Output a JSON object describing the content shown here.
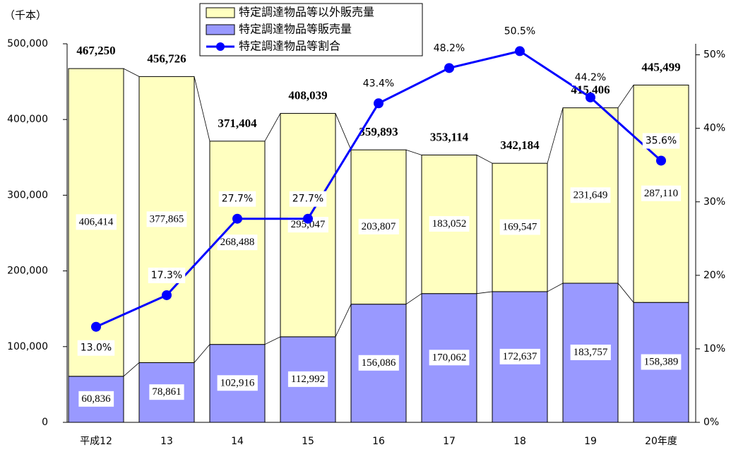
{
  "chart_data": {
    "type": "bar",
    "stacked": true,
    "y_label": "（千本）",
    "categories": [
      "平成12",
      "13",
      "14",
      "15",
      "16",
      "17",
      "18",
      "19",
      "20年度"
    ],
    "series": [
      {
        "name": "特定調達物品等販売量",
        "color": "#9999ff",
        "values": [
          60836,
          78861,
          102916,
          112992,
          156086,
          170062,
          172637,
          183757,
          158389
        ],
        "value_labels": [
          "60,836",
          "78,861",
          "102,916",
          "112,992",
          "156,086",
          "170,062",
          "172,637",
          "183,757",
          "158,389"
        ]
      },
      {
        "name": "特定調達物品等以外販売量",
        "color": "#ffffc0",
        "values": [
          406414,
          377865,
          268488,
          295047,
          203807,
          183052,
          169547,
          231649,
          287110
        ],
        "value_labels": [
          "406,414",
          "377,865",
          "268,488",
          "295,047",
          "203,807",
          "183,052",
          "169,547",
          "231,649",
          "287,110"
        ]
      },
      {
        "name": "特定調達物品等割合",
        "color": "#0000ff",
        "type": "line",
        "axis": "y2",
        "values": [
          13.0,
          17.3,
          27.7,
          27.7,
          43.4,
          48.2,
          50.5,
          44.2,
          35.6
        ],
        "value_labels": [
          "13.0%",
          "17.3%",
          "27.7%",
          "27.7%",
          "43.4%",
          "48.2%",
          "50.5%",
          "44.2%",
          "35.6%"
        ]
      }
    ],
    "totals": {
      "values": [
        467250,
        456726,
        371404,
        408039,
        359893,
        353114,
        342184,
        415406,
        445499
      ],
      "value_labels": [
        "467,250",
        "456,726",
        "371,404",
        "408,039",
        "359,893",
        "353,114",
        "342,184",
        "415,406",
        "445,499"
      ]
    },
    "ylim": [
      0,
      500000
    ],
    "yticks": [
      0,
      {
        "value": 100000,
        "label": "100,000"
      },
      {
        "value": 200000,
        "label": "200,000"
      },
      {
        "value": 300000,
        "label": "300,000"
      },
      {
        "value": 400000,
        "label": "400,000"
      },
      {
        "value": 500000,
        "label": "500,000"
      }
    ],
    "y2lim": [
      0,
      51.5
    ],
    "y2ticks": [
      {
        "value": 0,
        "label": "0%"
      },
      {
        "value": 10,
        "label": "10%"
      },
      {
        "value": 20,
        "label": "20%"
      },
      {
        "value": 30,
        "label": "30%"
      },
      {
        "value": 40,
        "label": "40%"
      },
      {
        "value": 50,
        "label": "50%"
      }
    ],
    "legend": "top"
  }
}
